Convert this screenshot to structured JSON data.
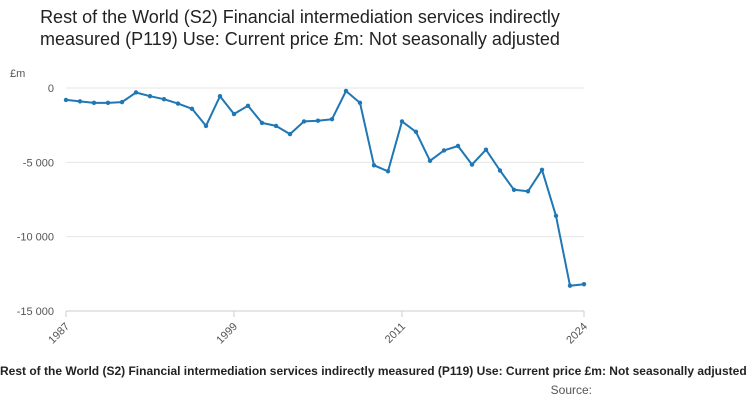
{
  "chart_data": {
    "type": "line",
    "title": "Rest of the World (S2) Financial intermediation services indirectly measured (P119) Use: Current price £m: Not seasonally adjusted",
    "ylabel": "£m",
    "xlabel": "",
    "ylim": [
      -15000,
      0
    ],
    "yticks": [
      0,
      -5000,
      -10000,
      -15000
    ],
    "ytick_labels": [
      "0",
      "-5 000",
      "-10 000",
      "-15 000"
    ],
    "xlim": [
      1987,
      2024
    ],
    "xtick_labels": [
      "1987",
      "1999",
      "2011",
      "2024"
    ],
    "series": [
      {
        "name": "Rest of the World (S2) Financial intermediation services indirectly measured (P119) Use: Current price £m",
        "color": "#1f77b4",
        "x": [
          1987,
          1988,
          1989,
          1990,
          1991,
          1992,
          1993,
          1994,
          1995,
          1996,
          1997,
          1998,
          1999,
          2000,
          2001,
          2002,
          2003,
          2004,
          2005,
          2006,
          2007,
          2008,
          2009,
          2010,
          2011,
          2012,
          2013,
          2014,
          2015,
          2016,
          2017,
          2018,
          2019,
          2020,
          2021,
          2022,
          2023,
          2024
        ],
        "values": [
          -800,
          -900,
          -1000,
          -1000,
          -950,
          -300,
          -550,
          -750,
          -1050,
          -1400,
          -2550,
          -550,
          -1750,
          -1200,
          -2350,
          -2550,
          -3100,
          -2250,
          -2200,
          -2100,
          -200,
          -1000,
          -5200,
          -5600,
          -2250,
          -2950,
          -4900,
          -4200,
          -3900,
          -5150,
          -4150,
          -5550,
          -6850,
          -6950,
          -5500,
          -8600,
          -13300,
          -13200
        ]
      }
    ]
  },
  "footer": {
    "legend_text": "Rest of the World (S2) Financial intermediation services indirectly measured (P119) Use: Current price £m: Not seasonally adjusted",
    "source_label": "Source:"
  }
}
